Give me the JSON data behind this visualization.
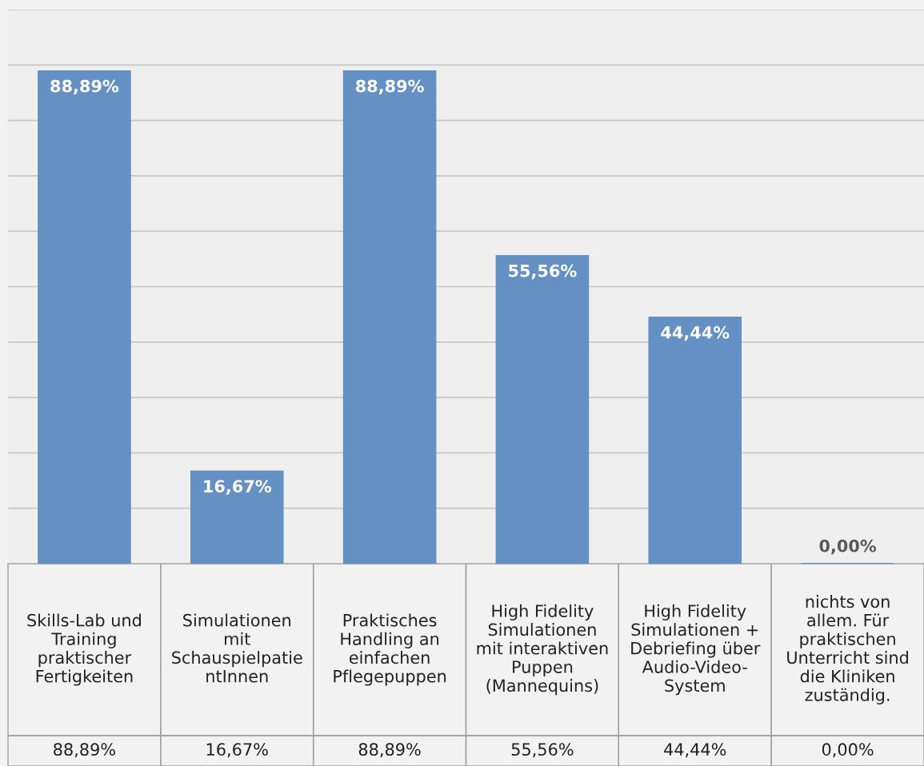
{
  "chart_data": {
    "type": "bar",
    "categories": [
      "Skills-Lab und\nTraining\npraktischer\nFertigkeiten",
      "Simulationen\nmit\nSchauspielpatie\nntInnen",
      "Praktisches\nHandling an\neinfachen\nPflegepuppen",
      "High Fidelity\nSimulationen\nmit interaktiven\nPuppen\n(Mannequins)",
      "High Fidelity\nSimulationen +\nDebriefing über\nAudio-Video-\nSystem",
      "nichts von\nallem. Für\npraktischen\nUnterricht sind\ndie Kliniken\nzuständig."
    ],
    "values": [
      88.89,
      16.67,
      88.89,
      55.56,
      44.44,
      0.0
    ],
    "value_labels": [
      "88,89%",
      "16,67%",
      "88,89%",
      "55,56%",
      "44,44%",
      "0,00%"
    ],
    "color": "#6590c4",
    "ylim": [
      0,
      100
    ],
    "yticks": [
      {
        "value": 0,
        "label": null
      },
      {
        "value": 10,
        "label": null
      },
      {
        "value": 20,
        "label": null
      },
      {
        "value": 30,
        "label": null
      },
      {
        "value": 40,
        "label": null
      },
      {
        "value": 50,
        "label": null
      },
      {
        "value": 60,
        "label": null
      },
      {
        "value": 70,
        "label": null
      },
      {
        "value": 80,
        "label": null
      },
      {
        "value": 90,
        "label": null
      },
      {
        "value": 100,
        "label": null
      }
    ],
    "grid": "y",
    "tick_labels": "x"
  }
}
